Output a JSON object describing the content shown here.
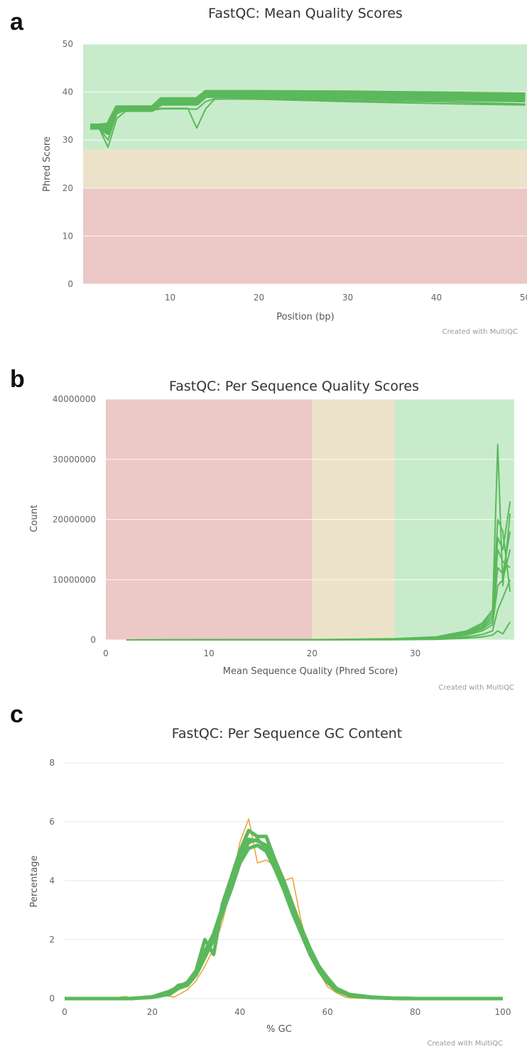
{
  "panel_letters": [
    "a",
    "b",
    "c"
  ],
  "credit": "Created with MultiQC",
  "colors": {
    "good_zone": "#c8eccb",
    "warn_zone": "#ece2c9",
    "bad_zone": "#ecc8c7",
    "series_green": "#5cb85c",
    "series_orange": "#e6a838",
    "grid": "#e6e6e6"
  },
  "chart_data": [
    {
      "type": "line",
      "title": "FastQC: Mean Quality Scores",
      "xlabel": "Position (bp)",
      "ylabel": "Phred Score",
      "xlim": [
        0.2,
        50.2
      ],
      "ylim": [
        0,
        50
      ],
      "xticks": [
        10,
        20,
        30,
        40,
        50
      ],
      "yticks": [
        0,
        10,
        20,
        30,
        40,
        50
      ],
      "zones": [
        {
          "from": 28,
          "to": 50,
          "level": "good"
        },
        {
          "from": 20,
          "to": 28,
          "level": "warn"
        },
        {
          "from": 0,
          "to": 20,
          "level": "bad"
        }
      ],
      "series": [
        {
          "x": [
            1,
            2,
            3,
            4,
            5,
            6,
            7,
            8,
            9,
            10,
            11,
            12,
            13,
            14,
            15,
            20,
            30,
            40,
            50
          ],
          "y": [
            33.0,
            33.0,
            33.2,
            36.8,
            36.8,
            36.8,
            36.8,
            36.8,
            38.5,
            38.5,
            38.5,
            38.5,
            38.5,
            40.0,
            40.0,
            40.0,
            39.9,
            39.7,
            39.5
          ]
        },
        {
          "x": [
            1,
            2,
            3,
            4,
            5,
            6,
            7,
            8,
            9,
            10,
            11,
            12,
            13,
            14,
            15,
            20,
            30,
            40,
            50
          ],
          "y": [
            32.8,
            32.8,
            32.5,
            36.5,
            36.5,
            36.5,
            36.5,
            36.5,
            38.0,
            38.0,
            38.0,
            38.0,
            38.0,
            39.6,
            39.6,
            39.5,
            39.3,
            39.1,
            38.9
          ]
        },
        {
          "x": [
            1,
            2,
            3,
            4,
            5,
            6,
            7,
            8,
            9,
            10,
            11,
            12,
            13,
            14,
            15,
            20,
            30,
            40,
            50
          ],
          "y": [
            32.6,
            32.6,
            31.5,
            36.3,
            36.3,
            36.3,
            36.3,
            36.3,
            37.6,
            37.6,
            37.6,
            37.6,
            37.6,
            39.2,
            39.2,
            39.1,
            38.8,
            38.6,
            38.3
          ]
        },
        {
          "x": [
            1,
            2,
            3,
            4,
            5,
            6,
            7,
            8,
            9,
            10,
            11,
            12,
            13,
            14,
            15,
            20,
            30,
            40,
            50
          ],
          "y": [
            32.5,
            32.5,
            28.5,
            34.5,
            36.0,
            36.3,
            36.3,
            36.3,
            36.6,
            36.6,
            36.6,
            36.6,
            32.5,
            36.5,
            38.5,
            38.7,
            38.2,
            38.0,
            37.5
          ]
        },
        {
          "x": [
            1,
            2,
            3,
            4,
            5,
            6,
            7,
            8,
            9,
            10,
            11,
            12,
            13,
            14,
            15,
            20,
            30,
            40,
            50
          ],
          "y": [
            32.5,
            32.5,
            30.0,
            35.5,
            36.2,
            36.2,
            36.2,
            36.2,
            36.5,
            36.5,
            36.5,
            36.5,
            36.4,
            38.0,
            38.6,
            38.5,
            38.0,
            37.6,
            37.3
          ]
        }
      ]
    },
    {
      "type": "line",
      "title": "FastQC: Per Sequence Quality Scores",
      "xlabel": "Mean Sequence Quality (Phred Score)",
      "ylabel": "Count",
      "xlim": [
        0,
        39.6
      ],
      "ylim": [
        0,
        40000000
      ],
      "xticks": [
        0,
        10,
        20,
        30
      ],
      "yticks": [
        0,
        10000000,
        20000000,
        30000000,
        40000000
      ],
      "zones": [
        {
          "from": 0,
          "to": 20,
          "level": "bad"
        },
        {
          "from": 20,
          "to": 28,
          "level": "warn"
        },
        {
          "from": 28,
          "to": 39.6,
          "level": "good"
        }
      ],
      "series": [
        {
          "x": [
            2,
            20,
            28,
            32,
            35,
            36.5,
            37.5,
            38,
            38.5,
            39.2
          ],
          "y": [
            0,
            50000,
            200000,
            500000,
            1500000,
            2800000,
            5000000,
            32500000,
            9000000,
            21000000
          ]
        },
        {
          "x": [
            2,
            20,
            28,
            32,
            35,
            36.5,
            37.5,
            38,
            38.5,
            39.2
          ],
          "y": [
            0,
            40000,
            180000,
            450000,
            1300000,
            2500000,
            4500000,
            20000000,
            18000000,
            8000000
          ]
        },
        {
          "x": [
            2,
            20,
            28,
            32,
            35,
            36.5,
            37.5,
            38,
            38.5,
            39.2
          ],
          "y": [
            0,
            30000,
            150000,
            400000,
            1200000,
            2200000,
            4000000,
            17000000,
            15000000,
            23000000
          ]
        },
        {
          "x": [
            2,
            20,
            28,
            32,
            35,
            36.5,
            37.5,
            38,
            38.5,
            39.2
          ],
          "y": [
            0,
            30000,
            120000,
            350000,
            1000000,
            2000000,
            3500000,
            15000000,
            13000000,
            12000000
          ]
        },
        {
          "x": [
            2,
            20,
            28,
            32,
            35,
            36.5,
            37.5,
            38,
            38.5,
            39.2
          ],
          "y": [
            0,
            20000,
            100000,
            300000,
            900000,
            1800000,
            3000000,
            12000000,
            11000000,
            18000000
          ]
        },
        {
          "x": [
            2,
            20,
            28,
            32,
            35,
            36.5,
            37.5,
            38,
            38.5,
            39.2
          ],
          "y": [
            0,
            20000,
            100000,
            250000,
            800000,
            1500000,
            2500000,
            9000000,
            10000000,
            15000000
          ]
        },
        {
          "x": [
            2,
            20,
            28,
            32,
            35,
            36.5,
            37.5,
            38,
            38.5,
            39.2
          ],
          "y": [
            0,
            10000,
            50000,
            150000,
            500000,
            900000,
            1500000,
            5000000,
            7000000,
            10000000
          ]
        },
        {
          "x": [
            2,
            20,
            28,
            32,
            35,
            36.5,
            37.5,
            38,
            38.5,
            39.2
          ],
          "y": [
            0,
            10000,
            30000,
            100000,
            300000,
            500000,
            800000,
            1500000,
            1000000,
            3000000
          ]
        }
      ]
    },
    {
      "type": "line",
      "title": "FastQC: Per Sequence GC Content",
      "xlabel": "% GC",
      "ylabel": "Percentage",
      "xlim": [
        0,
        100
      ],
      "ylim": [
        0,
        8
      ],
      "xticks": [
        0,
        20,
        40,
        60,
        80,
        100
      ],
      "yticks": [
        0,
        2,
        4,
        6,
        8
      ],
      "series": [
        {
          "color": "orange",
          "x": [
            0,
            10,
            14,
            16,
            20,
            23,
            25,
            28,
            30,
            32,
            34,
            36,
            38,
            40,
            42,
            44,
            46,
            48,
            50,
            52,
            54,
            56,
            58,
            60,
            62,
            64,
            66,
            70,
            80,
            100
          ],
          "y": [
            0,
            0,
            0.07,
            0,
            0.05,
            0.1,
            0.05,
            0.3,
            0.6,
            1.1,
            1.7,
            2.6,
            3.8,
            5.3,
            6.1,
            4.6,
            4.7,
            4.5,
            4.0,
            4.1,
            2.6,
            1.6,
            0.9,
            0.4,
            0.2,
            0.05,
            0.02,
            0,
            0,
            0
          ]
        },
        {
          "color": "green",
          "x": [
            0,
            15,
            20,
            24,
            26,
            28,
            30,
            32,
            34,
            36,
            38,
            40,
            42,
            44,
            46,
            48,
            50,
            52,
            54,
            56,
            58,
            60,
            62,
            65,
            70,
            75,
            80,
            100
          ],
          "y": [
            0,
            0,
            0.05,
            0.2,
            0.45,
            0.5,
            0.9,
            1.5,
            2.1,
            3.0,
            3.9,
            4.8,
            5.3,
            5.4,
            5.1,
            4.5,
            3.8,
            3.0,
            2.3,
            1.6,
            1.0,
            0.6,
            0.3,
            0.12,
            0.04,
            0.01,
            0,
            0
          ]
        },
        {
          "color": "green",
          "x": [
            0,
            15,
            20,
            24,
            26,
            28,
            30,
            32,
            34,
            36,
            38,
            40,
            42,
            44,
            46,
            48,
            50,
            52,
            54,
            56,
            58,
            60,
            62,
            65,
            70,
            75,
            80,
            100
          ],
          "y": [
            0,
            0,
            0.06,
            0.25,
            0.4,
            0.55,
            0.95,
            2.0,
            1.5,
            3.2,
            4.1,
            5.0,
            5.7,
            5.5,
            5.5,
            4.7,
            4.0,
            3.2,
            2.4,
            1.7,
            1.1,
            0.7,
            0.35,
            0.14,
            0.05,
            0.01,
            0,
            0
          ]
        },
        {
          "color": "green",
          "x": [
            0,
            15,
            20,
            24,
            26,
            28,
            30,
            32,
            34,
            36,
            38,
            40,
            42,
            44,
            46,
            48,
            50,
            52,
            54,
            56,
            58,
            60,
            62,
            65,
            70,
            75,
            80,
            100
          ],
          "y": [
            0,
            0,
            0.04,
            0.15,
            0.35,
            0.45,
            0.8,
            1.4,
            2.0,
            2.9,
            3.7,
            4.6,
            5.1,
            5.2,
            5.0,
            4.4,
            3.7,
            2.9,
            2.2,
            1.5,
            0.95,
            0.55,
            0.28,
            0.1,
            0.03,
            0.01,
            0,
            0
          ]
        },
        {
          "color": "green",
          "x": [
            0,
            15,
            20,
            24,
            26,
            28,
            30,
            32,
            34,
            36,
            38,
            40,
            42,
            44,
            46,
            48,
            50,
            52,
            54,
            56,
            58,
            60,
            62,
            65,
            70,
            75,
            80,
            100
          ],
          "y": [
            0,
            0,
            0.05,
            0.22,
            0.42,
            0.52,
            0.92,
            1.6,
            2.2,
            3.1,
            4.0,
            4.9,
            5.4,
            5.35,
            5.2,
            4.6,
            3.9,
            3.1,
            2.35,
            1.65,
            1.05,
            0.65,
            0.32,
            0.13,
            0.04,
            0.01,
            0,
            0
          ]
        }
      ]
    }
  ]
}
